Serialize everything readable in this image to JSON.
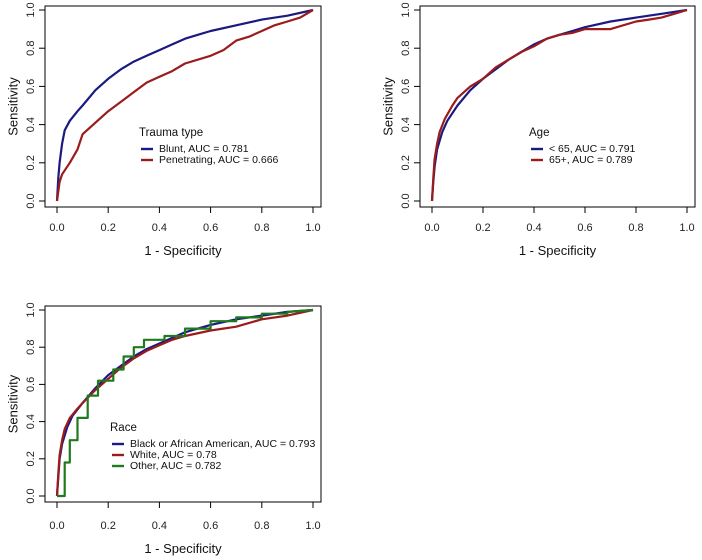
{
  "chart_data": [
    {
      "type": "line",
      "title": "",
      "xlabel": "1 - Specificity",
      "ylabel": "Sensitivity",
      "xlim": [
        0,
        1
      ],
      "ylim": [
        0,
        1
      ],
      "xticks": [
        "0.0",
        "0.2",
        "0.4",
        "0.6",
        "0.8",
        "1.0"
      ],
      "yticks": [
        "0.0",
        "0.2",
        "0.4",
        "0.6",
        "0.8",
        "1.0"
      ],
      "legend_title": "Trauma type",
      "legend_position": "center-right",
      "series": [
        {
          "name": "Blunt, AUC = 0.781",
          "color": "#1a1a80",
          "x": [
            0,
            0.005,
            0.01,
            0.02,
            0.03,
            0.05,
            0.08,
            0.1,
            0.15,
            0.2,
            0.25,
            0.3,
            0.35,
            0.4,
            0.45,
            0.5,
            0.55,
            0.6,
            0.7,
            0.8,
            0.9,
            1.0
          ],
          "y": [
            0,
            0.12,
            0.2,
            0.3,
            0.37,
            0.42,
            0.47,
            0.5,
            0.58,
            0.64,
            0.69,
            0.73,
            0.76,
            0.79,
            0.82,
            0.85,
            0.87,
            0.89,
            0.92,
            0.95,
            0.97,
            1.0
          ]
        },
        {
          "name": "Penetrating, AUC = 0.666",
          "color": "#9a1c1c",
          "x": [
            0,
            0.01,
            0.02,
            0.05,
            0.08,
            0.1,
            0.15,
            0.2,
            0.25,
            0.3,
            0.35,
            0.4,
            0.45,
            0.5,
            0.6,
            0.65,
            0.7,
            0.75,
            0.8,
            0.85,
            0.9,
            0.95,
            1.0
          ],
          "y": [
            0,
            0.1,
            0.14,
            0.2,
            0.27,
            0.35,
            0.41,
            0.47,
            0.52,
            0.57,
            0.62,
            0.65,
            0.68,
            0.72,
            0.76,
            0.79,
            0.84,
            0.86,
            0.89,
            0.92,
            0.94,
            0.96,
            1.0
          ]
        }
      ]
    },
    {
      "type": "line",
      "title": "",
      "xlabel": "1 - Specificity",
      "ylabel": "Sensitivity",
      "xlim": [
        0,
        1
      ],
      "ylim": [
        0,
        1
      ],
      "xticks": [
        "0.0",
        "0.2",
        "0.4",
        "0.6",
        "0.8",
        "1.0"
      ],
      "yticks": [
        "0.0",
        "0.2",
        "0.4",
        "0.6",
        "0.8",
        "1.0"
      ],
      "legend_title": "Age",
      "legend_position": "center-right",
      "series": [
        {
          "name": "< 65, AUC = 0.791",
          "color": "#1a1a80",
          "x": [
            0,
            0.005,
            0.01,
            0.02,
            0.04,
            0.06,
            0.1,
            0.15,
            0.2,
            0.25,
            0.3,
            0.35,
            0.4,
            0.45,
            0.5,
            0.55,
            0.6,
            0.7,
            0.8,
            0.9,
            1.0
          ],
          "y": [
            0,
            0.1,
            0.18,
            0.27,
            0.36,
            0.42,
            0.5,
            0.58,
            0.64,
            0.69,
            0.74,
            0.78,
            0.82,
            0.85,
            0.87,
            0.89,
            0.91,
            0.94,
            0.96,
            0.98,
            1.0
          ]
        },
        {
          "name": "65+, AUC = 0.789",
          "color": "#9a1c1c",
          "x": [
            0,
            0.005,
            0.01,
            0.02,
            0.03,
            0.05,
            0.08,
            0.1,
            0.15,
            0.2,
            0.25,
            0.3,
            0.35,
            0.4,
            0.45,
            0.5,
            0.55,
            0.6,
            0.65,
            0.7,
            0.8,
            0.85,
            0.9,
            0.95,
            1.0
          ],
          "y": [
            0,
            0.12,
            0.22,
            0.3,
            0.36,
            0.43,
            0.5,
            0.54,
            0.6,
            0.64,
            0.7,
            0.74,
            0.78,
            0.81,
            0.85,
            0.87,
            0.88,
            0.9,
            0.9,
            0.9,
            0.94,
            0.95,
            0.96,
            0.98,
            1.0
          ]
        }
      ]
    },
    {
      "type": "line",
      "title": "",
      "xlabel": "1 - Specificity",
      "ylabel": "Sensitivity",
      "xlim": [
        0,
        1
      ],
      "ylim": [
        0,
        1
      ],
      "xticks": [
        "0.0",
        "0.2",
        "0.4",
        "0.6",
        "0.8",
        "1.0"
      ],
      "yticks": [
        "0.0",
        "0.2",
        "0.4",
        "0.6",
        "0.8",
        "1.0"
      ],
      "legend_title": "Race",
      "legend_position": "center-right",
      "series": [
        {
          "name": "Black or African American, AUC = 0.793",
          "color": "#1a1a80",
          "x": [
            0,
            0.005,
            0.01,
            0.02,
            0.04,
            0.06,
            0.1,
            0.15,
            0.2,
            0.25,
            0.3,
            0.35,
            0.4,
            0.45,
            0.5,
            0.55,
            0.6,
            0.7,
            0.8,
            0.9,
            1.0
          ],
          "y": [
            0,
            0.1,
            0.2,
            0.28,
            0.37,
            0.43,
            0.5,
            0.58,
            0.65,
            0.7,
            0.75,
            0.79,
            0.82,
            0.85,
            0.88,
            0.9,
            0.92,
            0.95,
            0.97,
            0.99,
            1.0
          ]
        },
        {
          "name": "White, AUC = 0.78",
          "color": "#9a1c1c",
          "x": [
            0,
            0.005,
            0.01,
            0.02,
            0.03,
            0.05,
            0.08,
            0.1,
            0.15,
            0.2,
            0.25,
            0.3,
            0.35,
            0.4,
            0.45,
            0.5,
            0.6,
            0.7,
            0.8,
            0.9,
            1.0
          ],
          "y": [
            0,
            0.12,
            0.22,
            0.3,
            0.36,
            0.42,
            0.47,
            0.5,
            0.57,
            0.63,
            0.69,
            0.74,
            0.78,
            0.81,
            0.84,
            0.86,
            0.89,
            0.91,
            0.95,
            0.97,
            1.0
          ]
        },
        {
          "name": "Other, AUC = 0.782",
          "color": "#1f7a1f",
          "x": [
            0,
            0.03,
            0.03,
            0.05,
            0.05,
            0.08,
            0.08,
            0.12,
            0.12,
            0.16,
            0.16,
            0.22,
            0.22,
            0.26,
            0.26,
            0.3,
            0.3,
            0.34,
            0.34,
            0.42,
            0.42,
            0.5,
            0.5,
            0.6,
            0.6,
            0.7,
            0.7,
            0.8,
            0.8,
            0.9,
            0.9,
            1.0
          ],
          "y": [
            0,
            0,
            0.18,
            0.18,
            0.3,
            0.3,
            0.42,
            0.42,
            0.54,
            0.54,
            0.62,
            0.62,
            0.68,
            0.68,
            0.75,
            0.75,
            0.8,
            0.8,
            0.84,
            0.84,
            0.86,
            0.86,
            0.9,
            0.9,
            0.94,
            0.94,
            0.96,
            0.96,
            0.98,
            0.98,
            0.99,
            1.0
          ]
        }
      ]
    }
  ]
}
